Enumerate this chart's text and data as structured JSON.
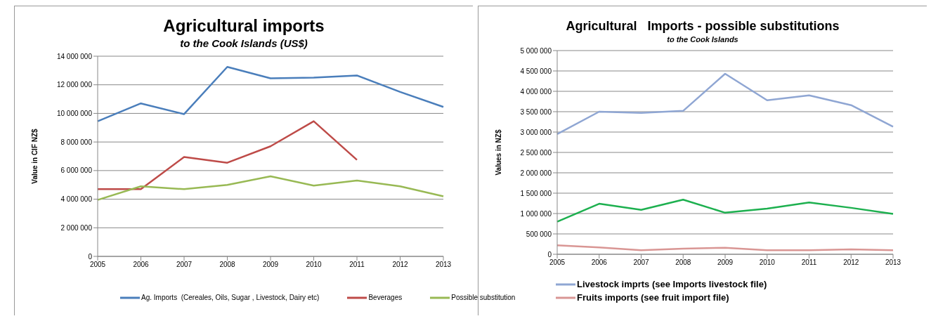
{
  "chart_data": [
    {
      "type": "line",
      "title": "Agricultural imports",
      "subtitle": "to the Cook Islands (US$)",
      "ylabel": "Value in CIF NZ$",
      "categories": [
        "2005",
        "2006",
        "2007",
        "2008",
        "2009",
        "2010",
        "2011",
        "2012",
        "2013"
      ],
      "series": [
        {
          "name": "Ag. Imports  (Cereales, Oils, Sugar , Livestock, Dairy etc)",
          "color": "#4a7ebb",
          "values": [
            9450000,
            10700000,
            9950000,
            13250000,
            12450000,
            12500000,
            12650000,
            11500000,
            10450000
          ]
        },
        {
          "name": "Beverages",
          "color": "#be4b48",
          "values": [
            4700000,
            4700000,
            6950000,
            6550000,
            7700000,
            9450000,
            6750000,
            null,
            null
          ]
        },
        {
          "name": "Possible substitution",
          "color": "#98b954",
          "values": [
            3950000,
            4900000,
            4700000,
            5000000,
            5600000,
            4950000,
            5300000,
            4900000,
            4200000
          ]
        }
      ],
      "ylim": [
        0,
        14000000
      ],
      "yticks": [
        {
          "value": 0,
          "label": "0"
        },
        {
          "value": 2000000,
          "label": "2 000 000"
        },
        {
          "value": 4000000,
          "label": "4 000 000"
        },
        {
          "value": 6000000,
          "label": "6 000 000"
        },
        {
          "value": 8000000,
          "label": "8 000 000"
        },
        {
          "value": 10000000,
          "label": "10 000 000"
        },
        {
          "value": 12000000,
          "label": "12 000 000"
        },
        {
          "value": 14000000,
          "label": "14 000 000"
        }
      ],
      "grid": "y",
      "legend": "bottom",
      "marker": "none",
      "line_style": "solid"
    },
    {
      "type": "line",
      "title": "Agricultural   Imports - possible substitutions",
      "subtitle": "to the Cook Islands",
      "ylabel": "Values in NZ$",
      "categories": [
        "2005",
        "2006",
        "2007",
        "2008",
        "2009",
        "2010",
        "2011",
        "2012",
        "2013"
      ],
      "series": [
        {
          "name": "Livestock imprts (see Imports livestock file)",
          "color": "#8fa6d3",
          "values": [
            2950000,
            3500000,
            3470000,
            3520000,
            4430000,
            3780000,
            3900000,
            3660000,
            3130000
          ]
        },
        {
          "color": "#1db04f",
          "values": [
            800000,
            1240000,
            1090000,
            1340000,
            1020000,
            1120000,
            1270000,
            1140000,
            990000
          ]
        },
        {
          "name": "Fruits imports (see fruit import file)",
          "color": "#d99694",
          "values": [
            220000,
            170000,
            100000,
            140000,
            160000,
            100000,
            100000,
            120000,
            100000
          ]
        }
      ],
      "ylim": [
        0,
        5000000
      ],
      "yticks": [
        {
          "value": 0,
          "label": "0"
        },
        {
          "value": 500000,
          "label": "500 000"
        },
        {
          "value": 1000000,
          "label": "1 000 000"
        },
        {
          "value": 1500000,
          "label": "1 500 000"
        },
        {
          "value": 2000000,
          "label": "2 000 000"
        },
        {
          "value": 2500000,
          "label": "2 500 000"
        },
        {
          "value": 3000000,
          "label": "3 000 000"
        },
        {
          "value": 3500000,
          "label": "3 500 000"
        },
        {
          "value": 4000000,
          "label": "4 000 000"
        },
        {
          "value": 4500000,
          "label": "4 500 000"
        },
        {
          "value": 5000000,
          "label": "5 000 000"
        }
      ],
      "grid": "y",
      "legend": "bottom",
      "marker": "none",
      "line_style": "solid"
    }
  ]
}
